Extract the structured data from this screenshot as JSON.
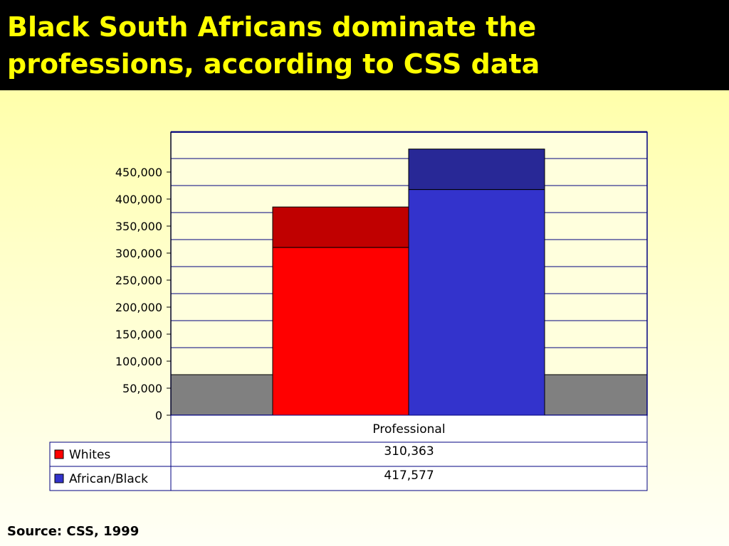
{
  "slide": {
    "title": "Black South Africans dominate the professions, according to CSS data",
    "source": "Source: CSS, 1999"
  },
  "chart_data": {
    "type": "bar",
    "categories": [
      "Professional"
    ],
    "series": [
      {
        "name": "Whites",
        "values": [
          310363
        ],
        "value_labels": [
          "310,363"
        ],
        "color": "#ff0000",
        "top_color": "#c00000"
      },
      {
        "name": "African/Black",
        "values": [
          417577
        ],
        "value_labels": [
          "417,577"
        ],
        "color": "#3333cc",
        "top_color": "#282896"
      }
    ],
    "ylim": [
      0,
      450000
    ],
    "yticks": [
      0,
      50000,
      100000,
      150000,
      200000,
      250000,
      300000,
      350000,
      400000,
      450000
    ],
    "ytick_labels": [
      "0",
      "50,000",
      "100,000",
      "150,000",
      "200,000",
      "250,000",
      "300,000",
      "350,000",
      "400,000",
      "450,000"
    ],
    "grid": true,
    "style": "3d",
    "floor_color": "#808080",
    "gridline_color": "#000080",
    "legend": "data-table"
  }
}
